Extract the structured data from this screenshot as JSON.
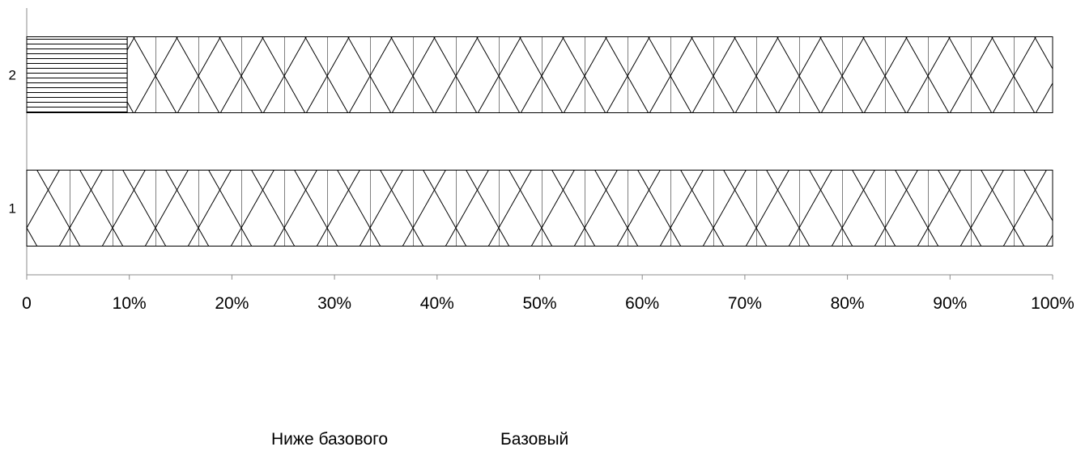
{
  "chart_data": {
    "type": "bar",
    "orientation": "horizontal",
    "stacked": "percent",
    "categories": [
      "1",
      "2"
    ],
    "series": [
      {
        "name": "Ниже базового",
        "values": [
          0,
          9.8
        ],
        "pattern": "horizontal-lines"
      },
      {
        "name": "Базовый",
        "values": [
          100,
          90.2
        ],
        "pattern": "diagonal-crosshatch"
      }
    ],
    "xlim": [
      0,
      100
    ],
    "x_ticks": [
      "0",
      "10%",
      "20%",
      "30%",
      "40%",
      "50%",
      "60%",
      "70%",
      "80%",
      "90%",
      "100%"
    ],
    "legend_position": "bottom",
    "grid": false,
    "colors": {
      "stroke": "#000000",
      "fill": "#ffffff"
    }
  }
}
